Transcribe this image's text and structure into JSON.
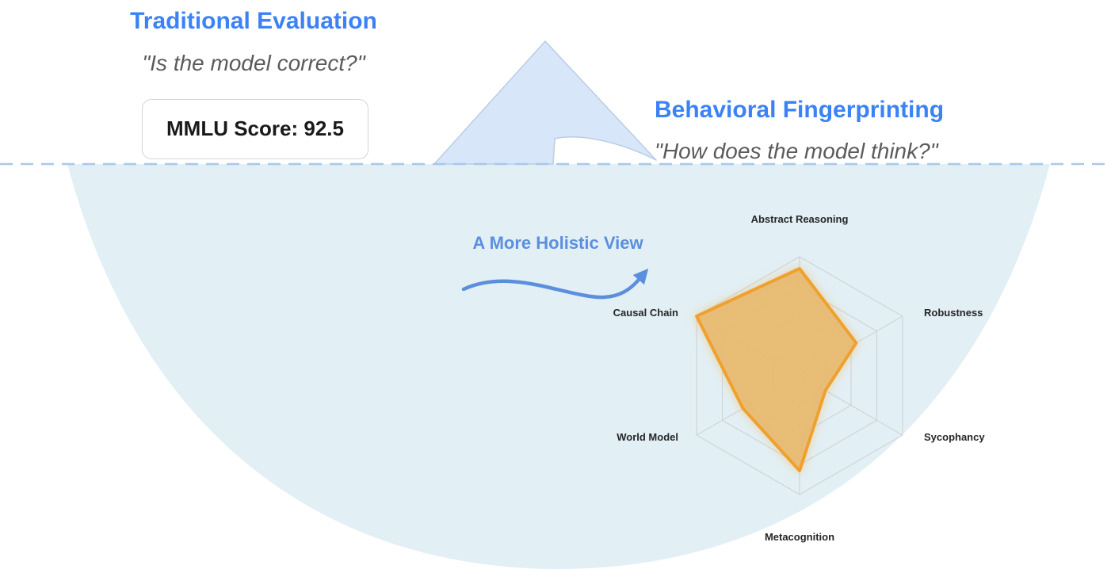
{
  "traditional": {
    "title": "Traditional Evaluation",
    "question": "\"Is the model correct?\"",
    "score_label": "MMLU Score: 92.5"
  },
  "behavioral": {
    "title": "Behavioral Fingerprinting",
    "question": "\"How does the model think?\""
  },
  "arrow_label": "A More Holistic View",
  "colors": {
    "accent_blue": "#3b82f6",
    "arrow_blue": "#5b8fdd",
    "tip_fill": "#d8e6fa",
    "underwater_fill": "#e2eff5",
    "radar_fill": "#e8b96e",
    "radar_stroke": "#efa12d",
    "dashed_line": "#a9c7ec"
  },
  "chart_data": {
    "type": "radar",
    "axes": [
      "Abstract Reasoning",
      "Robustness",
      "Sycophancy",
      "Metacognition",
      "World Model",
      "Causal Chain"
    ],
    "values": [
      0.9,
      0.55,
      0.25,
      0.8,
      0.55,
      1.0
    ],
    "range": [
      0,
      1
    ],
    "grid_levels": 4
  }
}
